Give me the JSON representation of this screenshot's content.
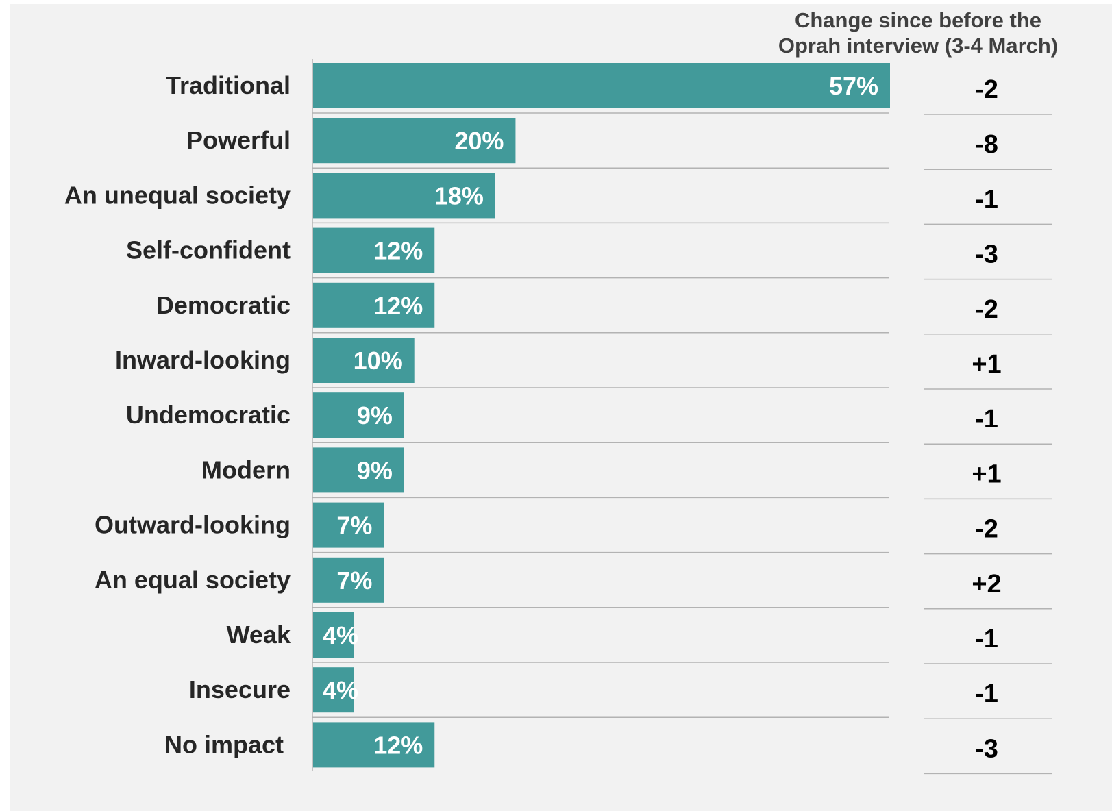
{
  "chart_data": {
    "type": "bar",
    "orientation": "horizontal",
    "categories": [
      "Traditional",
      "Powerful",
      "An unequal society",
      "Self-confident",
      "Democratic",
      "Inward-looking",
      "Undemocratic",
      "Modern",
      "Outward-looking",
      "An equal society",
      "Weak",
      "Insecure",
      "No impact"
    ],
    "values": [
      57,
      20,
      18,
      12,
      12,
      10,
      9,
      9,
      7,
      7,
      4,
      4,
      12
    ],
    "value_labels": [
      "57%",
      "20%",
      "18%",
      "12%",
      "12%",
      "10%",
      "9%",
      "9%",
      "7%",
      "7%",
      "4%",
      "4%",
      "12%"
    ],
    "xlim": [
      0,
      57
    ],
    "grid": false,
    "bar_color": "#429a9a",
    "change_column": {
      "header_lines": [
        "Change since before the",
        "Oprah interview (3-4 March)"
      ],
      "values": [
        "-2",
        "-8",
        "-1",
        "-3",
        "-2",
        "+1",
        "-1",
        "+1",
        "-2",
        "+2",
        "-1",
        "-1",
        "-3"
      ]
    }
  },
  "colors": {
    "background": "#f2f2f2",
    "bar": "#429a9a",
    "separator": "#b3b3b3",
    "label_text": "#262626",
    "header_text": "#404040"
  }
}
